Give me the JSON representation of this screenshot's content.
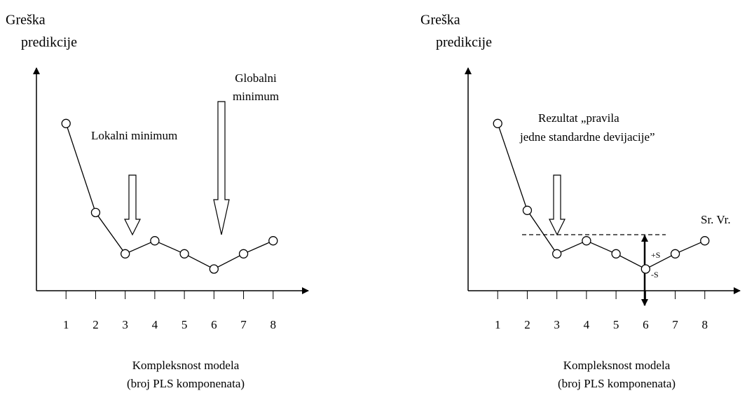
{
  "chart_data": [
    {
      "type": "line",
      "ylabel": [
        "Greška",
        "predikcije"
      ],
      "xlabel": [
        "Kompleksnost modela",
        "(broj PLS komponenata)"
      ],
      "x": [
        1,
        2,
        3,
        4,
        5,
        6,
        7,
        8
      ],
      "values": [
        77,
        36,
        17,
        23,
        17,
        10,
        17,
        23
      ],
      "xlim": [
        0,
        9
      ],
      "ylim": [
        0,
        100
      ],
      "xticks": [
        1,
        2,
        3,
        4,
        5,
        6,
        7,
        8
      ],
      "color": "#000000",
      "annotations": [
        "Lokalni minimum",
        "Globalni",
        "minimum"
      ]
    },
    {
      "type": "line",
      "ylabel": [
        "Greška",
        "predikcije"
      ],
      "xlabel": [
        "Kompleksnost modela",
        "(broj PLS komponenata)"
      ],
      "x": [
        1,
        2,
        3,
        4,
        5,
        6,
        7,
        8
      ],
      "values": [
        77,
        37,
        17,
        23,
        17,
        10,
        17,
        23
      ],
      "xlim": [
        0,
        9
      ],
      "ylim": [
        0,
        100
      ],
      "xticks": [
        1,
        2,
        3,
        4,
        5,
        6,
        7,
        8
      ],
      "color": "#000000",
      "annotations": [
        "Rezultat „pravila",
        "jedne standardne devijacije”",
        "Sr. Vr.",
        "+S",
        "-S"
      ]
    }
  ]
}
